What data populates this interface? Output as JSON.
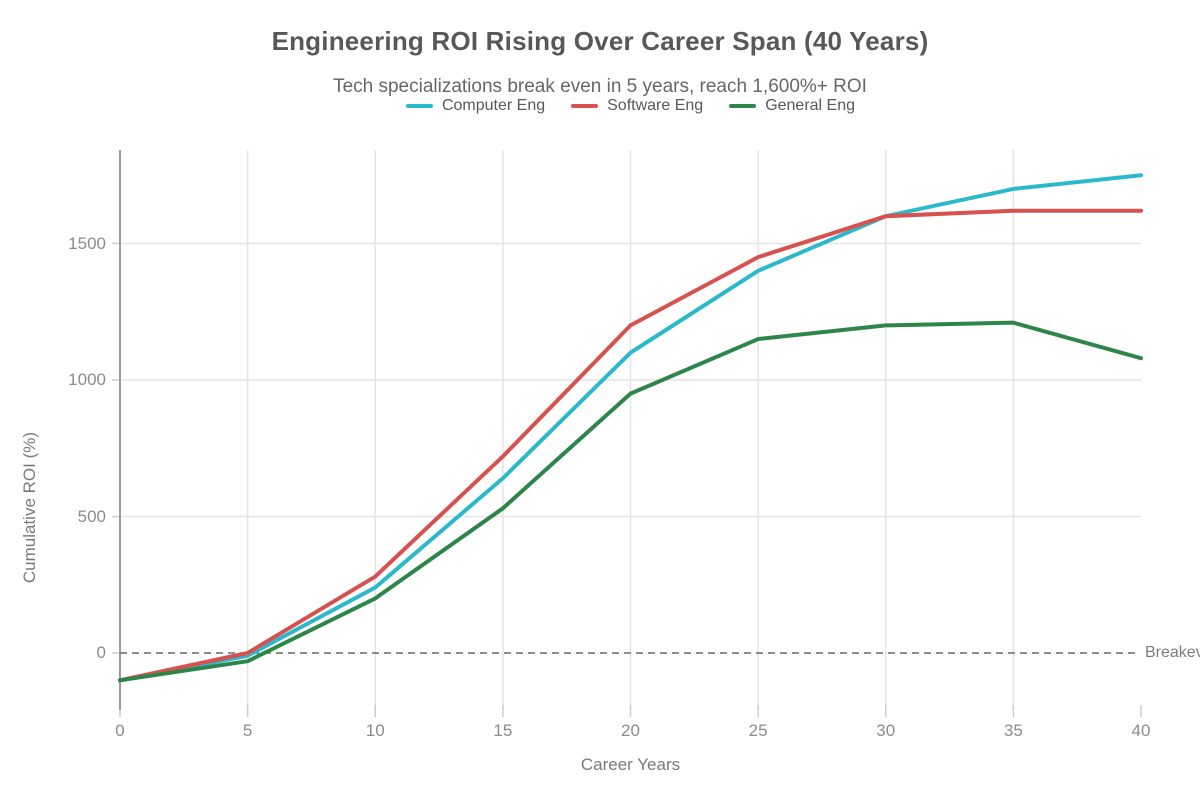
{
  "chart_data": {
    "type": "line",
    "title": "Engineering ROI Rising Over Career Span (40 Years)",
    "subtitle": "Tech specializations break even in 5 years, reach 1,600%+ ROI",
    "xlabel": "Career Years",
    "ylabel": "Cumulative ROI (%)",
    "x": [
      0,
      5,
      10,
      15,
      20,
      25,
      30,
      35,
      40
    ],
    "x_ticks": [
      0,
      5,
      10,
      15,
      20,
      25,
      30,
      35,
      40
    ],
    "y_ticks": [
      0,
      500,
      1000,
      1500
    ],
    "xlim": [
      0,
      40
    ],
    "ylim": [
      -210,
      1845
    ],
    "grid": true,
    "legend_position": "top-center",
    "series": [
      {
        "name": "Computer Eng",
        "color": "#2cb8cb",
        "values": [
          -100,
          -10,
          240,
          640,
          1100,
          1400,
          1600,
          1700,
          1750
        ]
      },
      {
        "name": "Software Eng",
        "color": "#d7514f",
        "values": [
          -100,
          0,
          280,
          720,
          1200,
          1450,
          1600,
          1620,
          1620
        ]
      },
      {
        "name": "General Eng",
        "color": "#2e8549",
        "values": [
          -100,
          -30,
          200,
          530,
          950,
          1150,
          1200,
          1210,
          1080
        ]
      }
    ],
    "annotations": [
      {
        "type": "hline",
        "y": 0,
        "label": "Breakeven",
        "style": "dashed"
      }
    ]
  },
  "theme": {
    "background": "#ffffff",
    "title_color": "#57585a",
    "subtitle_color": "#676767",
    "tick_label_color": "#8c8c8c",
    "axis_label_color": "#7a7a7a",
    "grid_color": "#e4e4e4",
    "tick_color": "#cccccc",
    "axis_color": "#9b9b9b",
    "breakeven_color": "#7d7d7d"
  }
}
